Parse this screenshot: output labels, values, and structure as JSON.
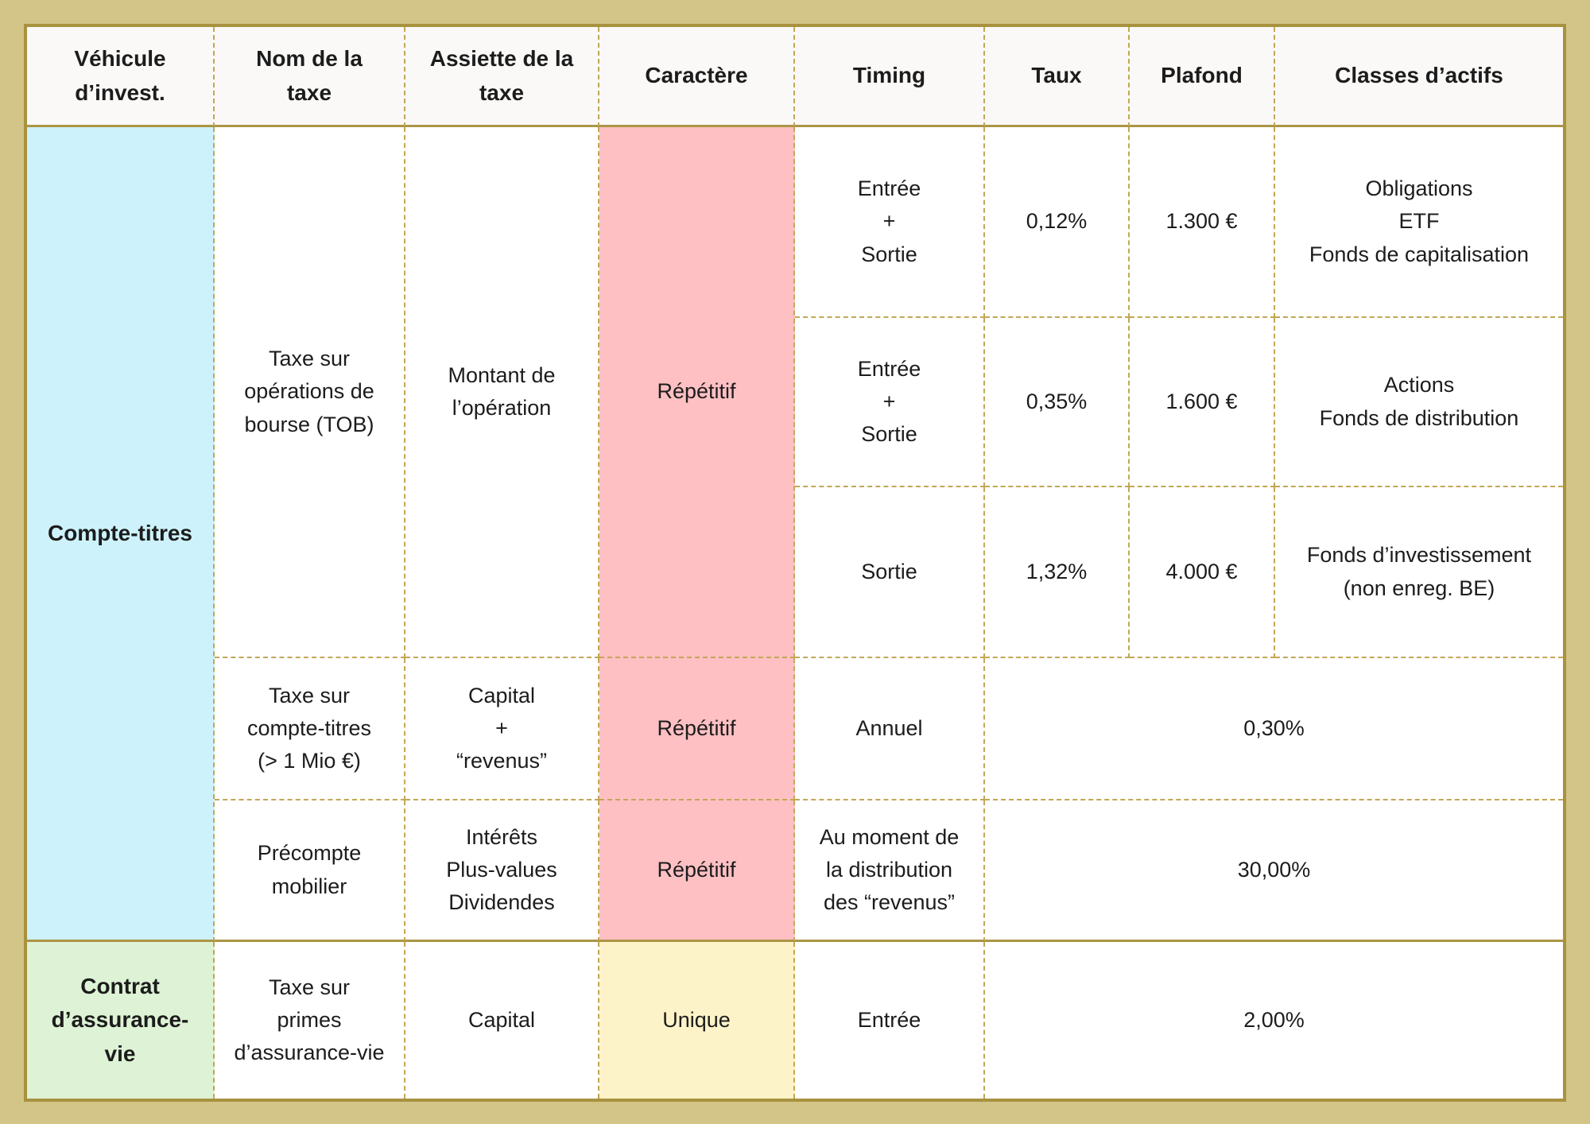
{
  "colors": {
    "page_background": "#d3c487",
    "table_border": "#a8923f",
    "dashed_line": "#c2a756",
    "solid_line": "#ab9545",
    "header_background": "#faf9f7",
    "vehicle_blue": "#cdf2fb",
    "character_pink": "#ffc0c3",
    "vehicle_green": "#def3d6",
    "character_yellow": "#fdf3c8"
  },
  "table": {
    "headers": [
      "Véhicule\nd’invest.",
      "Nom de la\ntaxe",
      "Assiette de la\ntaxe",
      "Caractère",
      "Timing",
      "Taux",
      "Plafond",
      "Classes d’actifs"
    ],
    "vehicles": {
      "compte_titres": "Compte-titres",
      "assurance": "Contrat\nd’assurance-\nvie"
    },
    "tob": {
      "name": "Taxe sur\nopérations de\nbourse (TOB)",
      "base": "Montant de\nl’opération",
      "character": "Répétitif",
      "rows": [
        {
          "timing": "Entrée\n+\nSortie",
          "taux": "0,12%",
          "plafond": "1.300 €",
          "classes": "Obligations\nETF\nFonds de capitalisation"
        },
        {
          "timing": "Entrée\n+\nSortie",
          "taux": "0,35%",
          "plafond": "1.600 €",
          "classes": "Actions\nFonds de distribution"
        },
        {
          "timing": "Sortie",
          "taux": "1,32%",
          "plafond": "4.000 €",
          "classes": "Fonds d’investissement\n(non enreg. BE)"
        }
      ]
    },
    "compte_titres_tax": {
      "name": "Taxe sur\ncompte-titres\n(> 1 Mio €)",
      "base": "Capital\n+\n“revenus”",
      "character": "Répétitif",
      "timing": "Annuel",
      "taux": "0,30%"
    },
    "precompte": {
      "name": "Précompte\nmobilier",
      "base": "Intérêts\nPlus-values\nDividendes",
      "character": "Répétitif",
      "timing": "Au moment de\nla distribution\ndes “revenus”",
      "taux": "30,00%"
    },
    "assurance_tax": {
      "name": "Taxe sur\nprimes\nd’assurance-vie",
      "base": "Capital",
      "character": "Unique",
      "timing": "Entrée",
      "taux": "2,00%"
    }
  }
}
